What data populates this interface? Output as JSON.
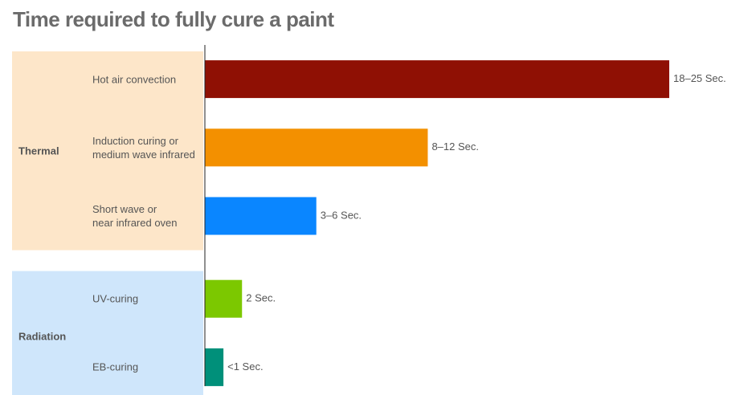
{
  "chart_data": {
    "type": "bar",
    "orientation": "horizontal",
    "title": "Time required to fully cure a paint",
    "xlim": [
      0,
      25
    ],
    "groups": [
      {
        "name": "Thermal",
        "color": "#fde6c9",
        "categories": [
          "Hot air convection",
          "Induction curing or\nmedium wave infrared",
          "Short wave or\nnear infrared oven"
        ],
        "values": [
          25,
          12,
          6
        ],
        "value_labels": [
          "18–25 Sec.",
          "8–12 Sec.",
          "3–6 Sec."
        ],
        "colors": [
          "#8f1004",
          "#f39000",
          "#0a86ff"
        ]
      },
      {
        "name": "Radiation",
        "color": "#cfe6fb",
        "categories": [
          "UV-curing",
          "EB-curing"
        ],
        "values": [
          2,
          1
        ],
        "value_labels": [
          "2 Sec.",
          "<1 Sec."
        ],
        "colors": [
          "#7cc800",
          "#00907a"
        ]
      }
    ]
  }
}
